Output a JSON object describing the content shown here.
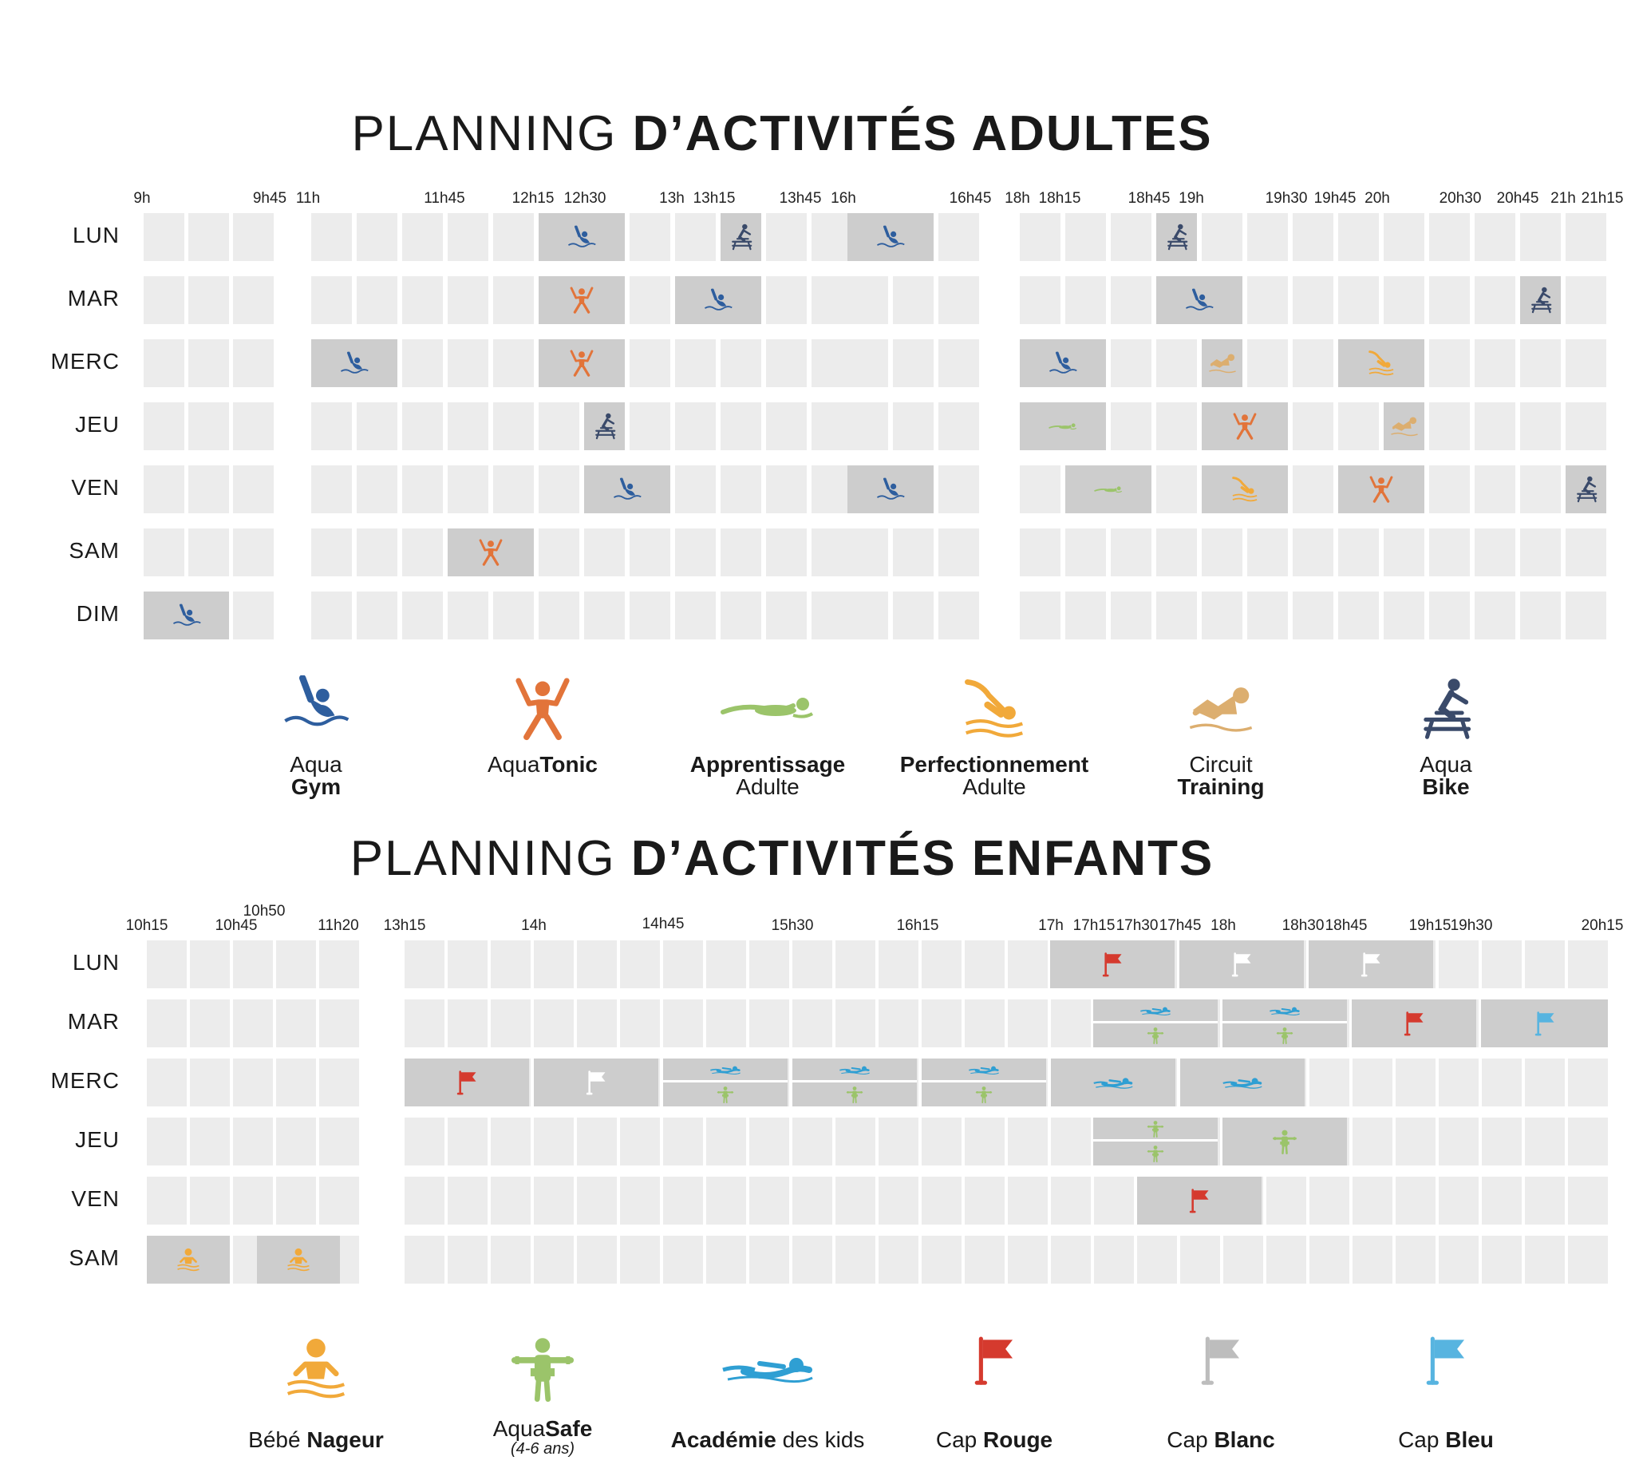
{
  "adults": {
    "title_light": "PLANNING ",
    "title_bold": "D’ACTIVITÉS ADULTES",
    "times": [
      "9h",
      "9h45",
      "11h",
      "11h45",
      "12h15",
      "12h30",
      "13h",
      "13h15",
      "13h45",
      "16h",
      "16h45",
      "18h",
      "18h15",
      "18h45",
      "19h",
      "19h30",
      "19h45",
      "20h",
      "20h30",
      "20h45",
      "21h",
      "21h15"
    ],
    "days": [
      "LUN",
      "MAR",
      "MERC",
      "JEU",
      "VEN",
      "SAM",
      "DIM"
    ],
    "legend": [
      {
        "icon": "aqua-gym-icon",
        "line1_light": "Aqua",
        "line1_bold": "",
        "line2_light": "",
        "line2_bold": "Gym",
        "color": "#2e5e9e"
      },
      {
        "icon": "aqua-tonic-icon",
        "line1_light": "Aqua",
        "line1_bold": "Tonic",
        "line2_light": "",
        "line2_bold": "",
        "color": "#e2743a"
      },
      {
        "icon": "apprentissage-icon",
        "line1_light": "",
        "line1_bold": "Apprentissage",
        "line2_light": "Adulte",
        "line2_bold": "",
        "color": "#9bc46a"
      },
      {
        "icon": "perfectionnement-icon",
        "line1_light": "",
        "line1_bold": "Perfectionnement",
        "line2_light": "Adulte",
        "line2_bold": "",
        "color": "#f1a93a"
      },
      {
        "icon": "circuit-training-icon",
        "line1_light": "Circuit",
        "line1_bold": "",
        "line2_light": "",
        "line2_bold": "Training",
        "color": "#dcae6f"
      },
      {
        "icon": "aqua-bike-icon",
        "line1_light": "Aqua",
        "line1_bold": "",
        "line2_light": "",
        "line2_bold": "Bike",
        "color": "#3a4a6a"
      }
    ]
  },
  "kids": {
    "title_light": "PLANNING ",
    "title_bold": "D’ACTIVITÉS ENFANTS",
    "times": [
      "10h15",
      "10h45",
      "10h50",
      "11h20",
      "13h15",
      "14h",
      "14h45",
      "15h30",
      "16h15",
      "17h",
      "17h15",
      "17h30",
      "17h45",
      "18h",
      "18h30",
      "18h45",
      "19h15",
      "19h30",
      "20h15"
    ],
    "days": [
      "LUN",
      "MAR",
      "MERC",
      "JEU",
      "VEN",
      "SAM"
    ],
    "legend": [
      {
        "icon": "bebe-nageur-icon",
        "line1_light": "Bébé ",
        "line1_bold": "Nageur",
        "sub": "",
        "color": "#f1a93a"
      },
      {
        "icon": "aquasafe-icon",
        "line1_light": "Aqua",
        "line1_bold": "Safe",
        "sub": "(4-6 ans)",
        "color": "#9bc46a"
      },
      {
        "icon": "academie-icon",
        "line1_light": " des kids",
        "line1_bold": "Académie",
        "sub": "",
        "color": "#2f9fd3"
      },
      {
        "icon": "cap-rouge-icon",
        "line1_light": "Cap ",
        "line1_bold": "Rouge",
        "sub": "",
        "color": "#d53a2e"
      },
      {
        "icon": "cap-blanc-icon",
        "line1_light": "Cap ",
        "line1_bold": "Blanc",
        "sub": "",
        "color": "#bdbdbd"
      },
      {
        "icon": "cap-bleu-icon",
        "line1_light": "Cap ",
        "line1_bold": "Bleu",
        "sub": "",
        "color": "#57b4e0"
      }
    ]
  }
}
